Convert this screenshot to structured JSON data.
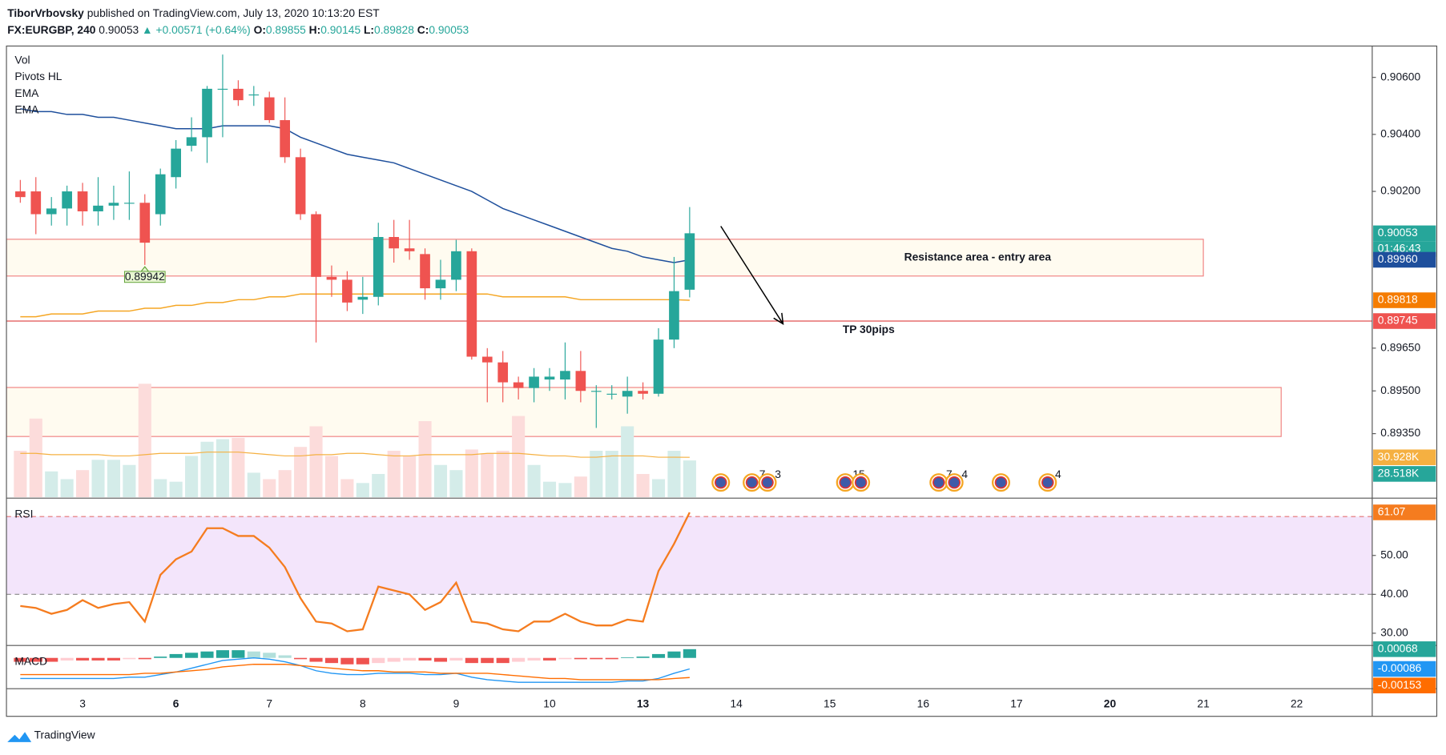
{
  "header": {
    "publisher": "TiborVrbovsky",
    "published": "published on TradingView.com, July 13, 2020 10:13:20 EST",
    "symbol": "FX:EURGBP, 240",
    "last": "0.90053",
    "change": "+0.00571 (+0.64%)",
    "ohlc": [
      {
        "label": "O:",
        "value": "0.89855"
      },
      {
        "label": "H:",
        "value": "0.90145"
      },
      {
        "label": "L:",
        "value": "0.89828"
      },
      {
        "label": "C:",
        "value": "0.90053"
      }
    ]
  },
  "footer": {
    "brand": "TradingView"
  },
  "chart_data": [
    {
      "type": "candlestick",
      "indicators": [
        "Vol",
        "Pivots HL",
        "EMA",
        "EMA"
      ],
      "up_color": "#26a69a",
      "down_color": "#ef5350",
      "open": [
        0.902,
        0.902,
        0.9012,
        0.9014,
        0.902,
        0.9013,
        0.9015,
        0.9016,
        0.9016,
        0.9012,
        0.9025,
        0.9036,
        0.9039,
        0.9056,
        0.9056,
        0.9054,
        0.9053,
        0.9045,
        0.9032,
        0.9012,
        0.899,
        0.8989,
        0.8982,
        0.8983,
        0.9004,
        0.9,
        0.8998,
        0.8986,
        0.8989,
        0.8999,
        0.8962,
        0.896,
        0.8953,
        0.8951,
        0.8954,
        0.8954,
        0.8957,
        0.895,
        0.8949,
        0.8948,
        0.895,
        0.8949,
        0.8968,
        0.89855
      ],
      "high": [
        0.9024,
        0.9025,
        0.9018,
        0.9022,
        0.9023,
        0.9025,
        0.9022,
        0.9027,
        0.9019,
        0.9028,
        0.9038,
        0.9046,
        0.9057,
        0.9068,
        0.9059,
        0.9057,
        0.9055,
        0.9053,
        0.9035,
        0.9013,
        0.8994,
        0.8992,
        0.899,
        0.9009,
        0.901,
        0.901,
        0.9,
        0.8996,
        0.9003,
        0.9,
        0.8965,
        0.8964,
        0.8955,
        0.8958,
        0.8958,
        0.8967,
        0.8964,
        0.8952,
        0.8952,
        0.8955,
        0.8953,
        0.8972,
        0.8997,
        0.90145
      ],
      "low": [
        0.9016,
        0.9005,
        0.9008,
        0.9008,
        0.9008,
        0.9008,
        0.901,
        0.901,
        0.89942,
        0.9008,
        0.9021,
        0.9034,
        0.903,
        0.9039,
        0.905,
        0.905,
        0.9044,
        0.903,
        0.901,
        0.8967,
        0.8983,
        0.8978,
        0.8977,
        0.898,
        0.8995,
        0.8996,
        0.8982,
        0.8982,
        0.8985,
        0.8961,
        0.8946,
        0.8946,
        0.8947,
        0.8946,
        0.895,
        0.8947,
        0.8946,
        0.8937,
        0.8947,
        0.8942,
        0.8947,
        0.8948,
        0.8965,
        0.89828
      ],
      "close": [
        0.9018,
        0.9012,
        0.9014,
        0.902,
        0.9013,
        0.9015,
        0.9016,
        0.9016,
        0.9002,
        0.9026,
        0.9035,
        0.9039,
        0.9056,
        0.9056,
        0.9052,
        0.9054,
        0.9045,
        0.9032,
        0.9012,
        0.899,
        0.8989,
        0.8981,
        0.8983,
        0.9004,
        0.9,
        0.8999,
        0.8986,
        0.8989,
        0.8999,
        0.8962,
        0.896,
        0.8953,
        0.8951,
        0.8955,
        0.8955,
        0.8957,
        0.895,
        0.895,
        0.8949,
        0.895,
        0.8949,
        0.8968,
        0.8985,
        0.90053
      ],
      "series": [
        {
          "name": "EMA",
          "color": "#1e4f9c",
          "values": [
            0.9049,
            0.9048,
            0.9048,
            0.9047,
            0.9047,
            0.9046,
            0.9046,
            0.9045,
            0.9044,
            0.9043,
            0.9042,
            0.9042,
            0.9042,
            0.9043,
            0.9043,
            0.9043,
            0.9043,
            0.9042,
            0.9039,
            0.9037,
            0.9035,
            0.9033,
            0.9032,
            0.9031,
            0.903,
            0.9028,
            0.9026,
            0.9024,
            0.9022,
            0.902,
            0.9017,
            0.9014,
            0.9012,
            0.901,
            0.9008,
            0.9006,
            0.9004,
            0.9002,
            0.9,
            0.8999,
            0.8997,
            0.8996,
            0.8995,
            0.8996
          ]
        },
        {
          "name": "EMA",
          "color": "#f5a623",
          "values": [
            0.8976,
            0.8976,
            0.8977,
            0.8977,
            0.8977,
            0.8978,
            0.8978,
            0.8978,
            0.8979,
            0.8979,
            0.898,
            0.898,
            0.8981,
            0.8981,
            0.8982,
            0.8982,
            0.8983,
            0.8983,
            0.8984,
            0.8984,
            0.8984,
            0.8984,
            0.8984,
            0.8984,
            0.8984,
            0.8984,
            0.8984,
            0.8984,
            0.8984,
            0.8984,
            0.8984,
            0.8983,
            0.8983,
            0.8983,
            0.8983,
            0.8983,
            0.8982,
            0.8982,
            0.8982,
            0.8982,
            0.8982,
            0.8982,
            0.8982,
            0.89818
          ]
        }
      ],
      "volume": {
        "values": [
          36,
          61,
          20,
          14,
          21,
          29,
          29,
          25,
          88,
          14,
          12,
          32,
          43,
          45,
          46,
          19,
          14,
          21,
          39,
          55,
          32,
          14,
          11,
          18,
          36,
          32,
          59,
          25,
          21,
          37,
          34,
          36,
          63,
          25,
          12,
          11,
          16,
          36,
          36,
          55,
          18,
          14,
          36,
          28.518
        ],
        "ma": [
          34,
          34,
          33,
          33,
          33,
          33,
          32,
          32,
          33,
          34,
          34,
          34,
          35,
          35,
          35,
          34,
          33,
          32,
          32,
          33,
          33,
          34,
          34,
          33,
          32,
          32,
          33,
          33,
          33,
          33,
          34,
          34,
          34,
          33,
          32,
          32,
          31,
          31,
          32,
          32,
          32,
          31,
          31,
          30.928
        ],
        "ma_color": "#f5b041",
        "ylim": [
          0,
          350
        ],
        "ma_label": "30.928K",
        "last_label": "28.518K"
      },
      "pivots": [
        {
          "index": 8,
          "value": 0.89942,
          "label": "0.89942"
        }
      ],
      "xlim": [
        -0.89,
        86.85
      ],
      "xticks": [
        {
          "value": 4,
          "label": "3"
        },
        {
          "value": 10,
          "label": "6",
          "bold": true
        },
        {
          "value": 16,
          "label": "7"
        },
        {
          "value": 22,
          "label": "8"
        },
        {
          "value": 28,
          "label": "9"
        },
        {
          "value": 34,
          "label": "10"
        },
        {
          "value": 40,
          "label": "13",
          "bold": true
        },
        {
          "value": 46,
          "label": "14"
        },
        {
          "value": 52,
          "label": "15"
        },
        {
          "value": 58,
          "label": "16"
        },
        {
          "value": 64,
          "label": "17"
        },
        {
          "value": 70,
          "label": "20",
          "bold": true
        },
        {
          "value": 76,
          "label": "21"
        },
        {
          "value": 82,
          "label": "22"
        }
      ],
      "ylim": [
        0.89127,
        0.9071
      ],
      "yticks": [
        {
          "value": 0.906,
          "label": "0.90600"
        },
        {
          "value": 0.904,
          "label": "0.90400"
        },
        {
          "value": 0.902,
          "label": "0.90200"
        },
        {
          "value": 0.8965,
          "label": "0.89650"
        },
        {
          "value": 0.895,
          "label": "0.89500"
        },
        {
          "value": 0.8935,
          "label": "0.89350"
        }
      ],
      "grid": true,
      "price_labels": [
        {
          "value": 0.90053,
          "label": "0.90053",
          "color": "#26a69a"
        },
        {
          "value": 0.8996,
          "label": "0.89960",
          "color": "#1e4f9c"
        },
        {
          "value": 0.89818,
          "label": "0.89818",
          "color": "#f57c00"
        },
        {
          "value": 0.89745,
          "label": "0.89745",
          "color": "#ef5350"
        }
      ],
      "countdown": "01:46:43",
      "annotations": {
        "zones": [
          {
            "top": 0.90032,
            "bottom": 0.89903,
            "x0": -0.89,
            "x1": 76,
            "label": "Resistance area - entry area",
            "label_x": 61.5
          },
          {
            "top": 0.89512,
            "bottom": 0.8934,
            "x0": -0.89,
            "x1": 81
          }
        ],
        "hline": {
          "value": 0.89745,
          "label": "TP 30pips",
          "label_x": 54.5
        },
        "arrow": {
          "from": [
            45,
            0.90078
          ],
          "to": [
            49,
            0.89735
          ]
        }
      },
      "event_x": [
        45,
        47,
        48,
        53,
        54,
        59,
        60,
        63,
        66
      ],
      "event_labels": [
        null,
        "7",
        "3",
        "15",
        null,
        "7",
        "4",
        null,
        "4"
      ]
    },
    {
      "type": "line",
      "title": "RSI",
      "color": "#f57c1f",
      "values": [
        37,
        36.5,
        35,
        36,
        38.5,
        36.5,
        37.5,
        38,
        33,
        45,
        49,
        51,
        57,
        57,
        55,
        55,
        52,
        47,
        39,
        33,
        32.5,
        30.5,
        31,
        42,
        41,
        40,
        36,
        38,
        43,
        33,
        32.5,
        31,
        30.5,
        33,
        33,
        35,
        33,
        32,
        32,
        33.5,
        33,
        46,
        53,
        61.07
      ],
      "value_labels": [
        null,
        null,
        null,
        null,
        null,
        null,
        null,
        null,
        null,
        null,
        null,
        null,
        null,
        null,
        null,
        null,
        null,
        null,
        null,
        null,
        null,
        null,
        null,
        null,
        null,
        null,
        null,
        null,
        null,
        null,
        null,
        null,
        null,
        null,
        null,
        null,
        null,
        null,
        null,
        null,
        null,
        null,
        null,
        "61.07"
      ],
      "band": [
        40,
        60
      ],
      "ylim": [
        27.1,
        64.5
      ],
      "yticks": [
        {
          "value": 30,
          "label": "30.00"
        },
        {
          "value": 40,
          "label": "40.00"
        },
        {
          "value": 50,
          "label": "50.00"
        }
      ]
    },
    {
      "type": "macd",
      "title": "MACD",
      "histogram": {
        "values": [
          -0.0003,
          -0.0003,
          -0.0003,
          -0.0002,
          -0.0002,
          -0.0002,
          -0.0002,
          -0.0001,
          -0.0001,
          0.0001,
          0.0003,
          0.0004,
          0.0005,
          0.0006,
          0.0006,
          0.0005,
          0.0004,
          0.0002,
          -0.0001,
          -0.0003,
          -0.0004,
          -0.0005,
          -0.0005,
          -0.0004,
          -0.0003,
          -0.0002,
          -0.0002,
          -0.0003,
          -0.0002,
          -0.0004,
          -0.0004,
          -0.0004,
          -0.0003,
          -0.0002,
          -0.0002,
          -0.0001,
          -0.0001,
          -0.0001,
          -0.0001,
          5e-05,
          0.0001,
          0.0003,
          0.0005,
          0.00068
        ],
        "last_label": "0.00068",
        "color": "#26a69a"
      },
      "series": [
        {
          "color": "#2196f3",
          "last_label": "-0.00086",
          "values": [
            -0.0016,
            -0.0016,
            -0.0016,
            -0.0016,
            -0.0016,
            -0.0016,
            -0.0016,
            -0.0015,
            -0.0015,
            -0.0013,
            -0.0011,
            -0.0008,
            -0.0005,
            -0.0002,
            -0.0001,
            0,
            -0.0001,
            -0.0003,
            -0.0006,
            -0.001,
            -0.0012,
            -0.0013,
            -0.0013,
            -0.0012,
            -0.0012,
            -0.0012,
            -0.0013,
            -0.0013,
            -0.0012,
            -0.0015,
            -0.0017,
            -0.0018,
            -0.0019,
            -0.0019,
            -0.0019,
            -0.0019,
            -0.0019,
            -0.0019,
            -0.0019,
            -0.0018,
            -0.0018,
            -0.0016,
            -0.0012,
            -0.00086
          ]
        },
        {
          "color": "#ff6d00",
          "last_label": "-0.00153",
          "values": [
            -0.0013,
            -0.0013,
            -0.0013,
            -0.0013,
            -0.0013,
            -0.0013,
            -0.0013,
            -0.0013,
            -0.0012,
            -0.0012,
            -0.0011,
            -0.001,
            -0.0009,
            -0.0007,
            -0.0006,
            -0.0005,
            -0.0005,
            -0.0005,
            -0.0006,
            -0.0007,
            -0.0008,
            -0.0009,
            -0.001,
            -0.001,
            -0.0011,
            -0.0011,
            -0.0011,
            -0.0012,
            -0.0012,
            -0.0012,
            -0.0012,
            -0.0013,
            -0.0014,
            -0.0015,
            -0.0016,
            -0.0016,
            -0.0017,
            -0.0017,
            -0.0017,
            -0.0017,
            -0.0017,
            -0.0017,
            -0.0016,
            -0.00153
          ]
        }
      ],
      "ylim": [
        -0.0024,
        0.0009
      ]
    }
  ]
}
